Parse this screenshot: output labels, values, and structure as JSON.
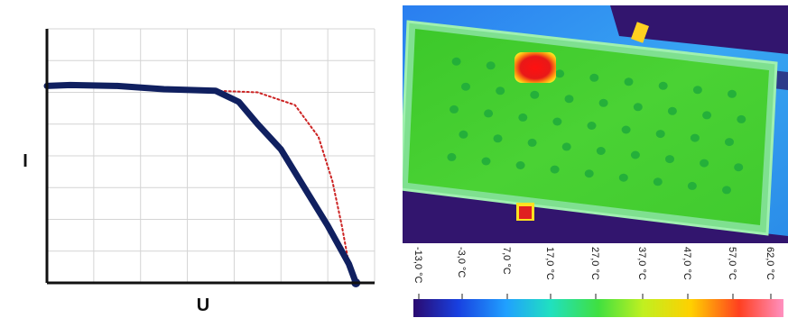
{
  "chart_data": [
    {
      "type": "line",
      "title": "",
      "xlabel": "U",
      "ylabel": "I",
      "xlim": [
        0,
        7
      ],
      "ylim": [
        0,
        8
      ],
      "grid": true,
      "tick_labels_shown": false,
      "series": [
        {
          "style": "solid",
          "color": "#102060",
          "x": [
            0,
            0.5,
            1.5,
            2.5,
            3.6,
            4.1,
            4.5,
            5.0,
            5.5,
            6.0,
            6.45,
            6.6
          ],
          "y": [
            6.2,
            6.23,
            6.2,
            6.1,
            6.05,
            5.7,
            5.0,
            4.2,
            3.0,
            1.8,
            0.6,
            0.0
          ]
        },
        {
          "style": "dotted",
          "color": "#cc2222",
          "x": [
            3.6,
            4.5,
            5.3,
            5.8,
            6.1,
            6.3,
            6.45,
            6.6
          ],
          "y": [
            6.05,
            6.0,
            5.6,
            4.6,
            3.2,
            1.8,
            0.6,
            0.0
          ]
        }
      ]
    },
    {
      "type": "heatmap",
      "subject": "infrared thermal image of a solar panel",
      "colorbar": {
        "tick_labels": [
          "-13,0 °C",
          "-3,0 °C",
          "7,0 °C",
          "17,0 °C",
          "27,0 °C",
          "37,0 °C",
          "47,0 °C",
          "57,0 °C",
          "62,0 °C"
        ],
        "colors": [
          "#2a0a70",
          "#1840e0",
          "#20a0ff",
          "#20e0c0",
          "#40e040",
          "#c0f020",
          "#ffd000",
          "#ff4020",
          "#ff90c0"
        ]
      },
      "colors": {
        "panel": "#40d02c",
        "hotspot": "#e01414",
        "surroundings": "#2a8cf0",
        "frame": "#32156e",
        "cells": "#1eaa3c"
      }
    }
  ]
}
